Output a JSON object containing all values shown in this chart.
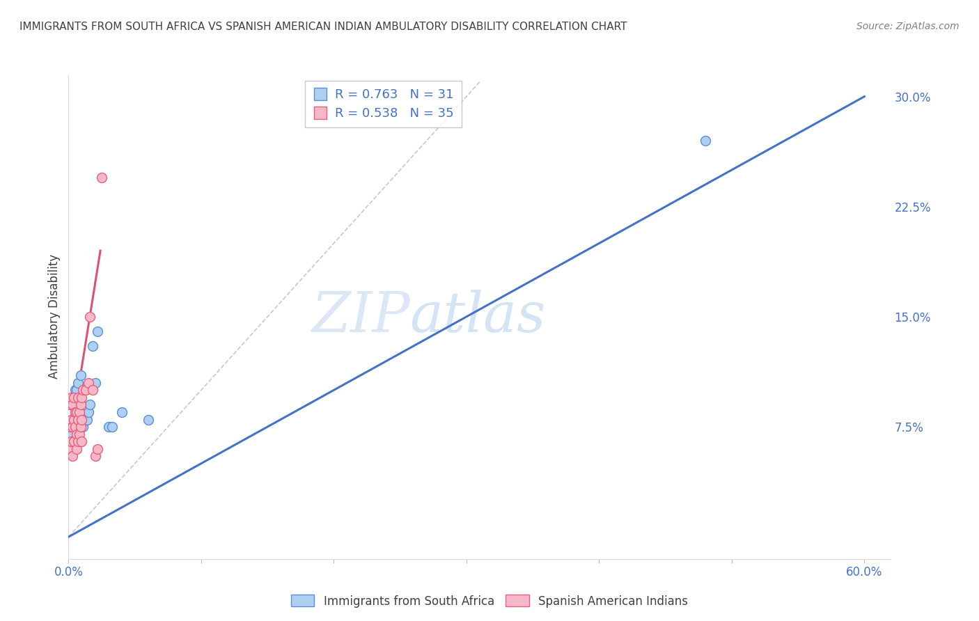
{
  "title": "IMMIGRANTS FROM SOUTH AFRICA VS SPANISH AMERICAN INDIAN AMBULATORY DISABILITY CORRELATION CHART",
  "source": "Source: ZipAtlas.com",
  "ylabel": "Ambulatory Disability",
  "watermark_zip": "ZIP",
  "watermark_atlas": "atlas",
  "xlim": [
    0.0,
    0.62
  ],
  "ylim": [
    -0.015,
    0.315
  ],
  "xticks": [
    0.0,
    0.1,
    0.2,
    0.3,
    0.4,
    0.5,
    0.6
  ],
  "yticks_right": [
    0.075,
    0.15,
    0.225,
    0.3
  ],
  "ytick_labels_right": [
    "7.5%",
    "15.0%",
    "22.5%",
    "30.0%"
  ],
  "xtick_labels": [
    "0.0%",
    "",
    "",
    "",
    "",
    "",
    "60.0%"
  ],
  "blue_R": 0.763,
  "blue_N": 31,
  "pink_R": 0.538,
  "pink_N": 35,
  "blue_color": "#AECFF0",
  "pink_color": "#F5B8C8",
  "blue_edge_color": "#5B8DD9",
  "pink_edge_color": "#E8607A",
  "blue_line_color": "#4472C4",
  "pink_line_color": "#E05070",
  "diag_color": "#C8C8C8",
  "grid_color": "#D0D0D0",
  "axis_tick_color": "#4472C4",
  "title_color": "#404040",
  "source_color": "#808080",
  "blue_line_x0": 0.0,
  "blue_line_y0": 0.0,
  "blue_line_x1": 0.6,
  "blue_line_y1": 0.3,
  "pink_line_x0": 0.001,
  "pink_line_y0": 0.065,
  "pink_line_x1": 0.024,
  "pink_line_y1": 0.195,
  "diag_line_x0": 0.0,
  "diag_line_y0": 0.0,
  "diag_line_x1": 0.31,
  "diag_line_y1": 0.31,
  "blue_scatter_x": [
    0.001,
    0.002,
    0.002,
    0.003,
    0.003,
    0.003,
    0.004,
    0.004,
    0.005,
    0.005,
    0.006,
    0.007,
    0.007,
    0.008,
    0.009,
    0.01,
    0.01,
    0.011,
    0.012,
    0.013,
    0.014,
    0.015,
    0.016,
    0.018,
    0.02,
    0.022,
    0.03,
    0.033,
    0.04,
    0.06,
    0.48
  ],
  "blue_scatter_y": [
    0.06,
    0.062,
    0.07,
    0.065,
    0.08,
    0.09,
    0.075,
    0.095,
    0.085,
    0.1,
    0.1,
    0.09,
    0.105,
    0.095,
    0.11,
    0.075,
    0.08,
    0.075,
    0.08,
    0.08,
    0.08,
    0.085,
    0.09,
    0.13,
    0.105,
    0.14,
    0.075,
    0.075,
    0.085,
    0.08,
    0.27
  ],
  "pink_scatter_x": [
    0.001,
    0.001,
    0.001,
    0.002,
    0.002,
    0.002,
    0.003,
    0.003,
    0.003,
    0.004,
    0.004,
    0.004,
    0.005,
    0.005,
    0.006,
    0.006,
    0.006,
    0.007,
    0.007,
    0.007,
    0.008,
    0.008,
    0.009,
    0.009,
    0.01,
    0.01,
    0.01,
    0.011,
    0.013,
    0.015,
    0.016,
    0.018,
    0.02,
    0.022,
    0.025
  ],
  "pink_scatter_y": [
    0.06,
    0.075,
    0.09,
    0.065,
    0.08,
    0.095,
    0.055,
    0.075,
    0.09,
    0.065,
    0.08,
    0.095,
    0.075,
    0.085,
    0.06,
    0.07,
    0.085,
    0.065,
    0.08,
    0.095,
    0.07,
    0.085,
    0.075,
    0.09,
    0.065,
    0.08,
    0.095,
    0.1,
    0.1,
    0.105,
    0.15,
    0.1,
    0.055,
    0.06,
    0.245
  ]
}
